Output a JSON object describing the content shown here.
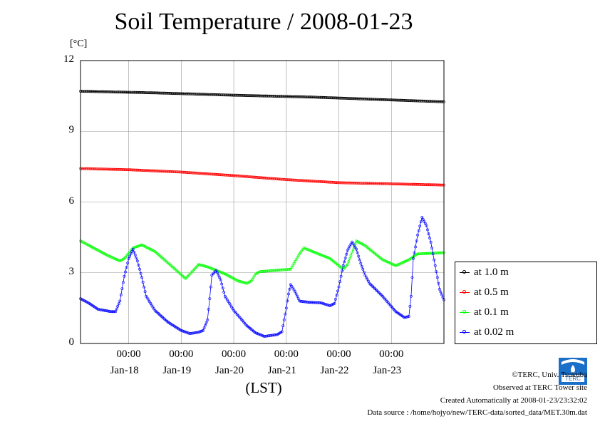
{
  "chart_data": {
    "type": "line",
    "title": "Soil Temperature / 2008-01-23",
    "ylabel": "[°C]",
    "xlabel": "(LST)",
    "ylim": [
      0,
      12
    ],
    "yticks": [
      "0",
      "3",
      "6",
      "9",
      "12"
    ],
    "xlim_days": [
      "2008-01-17 02:00",
      "2008-01-23 24:00"
    ],
    "xticks": [
      {
        "time": "00:00",
        "date": "Jan-18",
        "at": "2008-01-18 00:00"
      },
      {
        "time": "00:00",
        "date": "Jan-19",
        "at": "2008-01-19 00:00"
      },
      {
        "time": "00:00",
        "date": "Jan-20",
        "at": "2008-01-20 00:00"
      },
      {
        "time": "00:00",
        "date": "Jan-21",
        "at": "2008-01-21 00:00"
      },
      {
        "time": "00:00",
        "date": "Jan-22",
        "at": "2008-01-22 00:00"
      },
      {
        "time": "00:00",
        "date": "Jan-23",
        "at": "2008-01-23 00:00"
      }
    ],
    "grid": true,
    "legend_position": "right",
    "series": [
      {
        "name": "at 1.0 m",
        "color": "#000000",
        "points": [
          [
            "2008-01-17 02:00",
            10.7
          ],
          [
            "2008-01-18 12:00",
            10.63
          ],
          [
            "2008-01-20 00:00",
            10.53
          ],
          [
            "2008-01-21 12:00",
            10.45
          ],
          [
            "2008-01-23 00:00",
            10.33
          ],
          [
            "2008-01-23 24:00",
            10.25
          ]
        ]
      },
      {
        "name": "at 0.5 m",
        "color": "#ff0000",
        "points": [
          [
            "2008-01-17 02:00",
            7.42
          ],
          [
            "2008-01-18 00:00",
            7.37
          ],
          [
            "2008-01-19 00:00",
            7.27
          ],
          [
            "2008-01-20 00:00",
            7.12
          ],
          [
            "2008-01-21 00:00",
            6.95
          ],
          [
            "2008-01-22 00:00",
            6.82
          ],
          [
            "2008-01-23 00:00",
            6.77
          ],
          [
            "2008-01-23 24:00",
            6.72
          ]
        ]
      },
      {
        "name": "at 0.1 m",
        "color": "#00ff00",
        "points": [
          [
            "2008-01-17 02:00",
            4.35
          ],
          [
            "2008-01-17 14:00",
            3.75
          ],
          [
            "2008-01-17 20:00",
            3.5
          ],
          [
            "2008-01-17 22:00",
            3.6
          ],
          [
            "2008-01-18 02:00",
            4.05
          ],
          [
            "2008-01-18 06:00",
            4.18
          ],
          [
            "2008-01-18 12:00",
            3.9
          ],
          [
            "2008-01-18 20:00",
            3.25
          ],
          [
            "2008-01-19 02:00",
            2.75
          ],
          [
            "2008-01-19 06:00",
            3.15
          ],
          [
            "2008-01-19 08:00",
            3.35
          ],
          [
            "2008-01-19 12:00",
            3.25
          ],
          [
            "2008-01-19 20:00",
            2.95
          ],
          [
            "2008-01-20 02:00",
            2.65
          ],
          [
            "2008-01-20 06:00",
            2.55
          ],
          [
            "2008-01-20 08:00",
            2.65
          ],
          [
            "2008-01-20 10:00",
            2.95
          ],
          [
            "2008-01-20 12:00",
            3.05
          ],
          [
            "2008-01-21 02:00",
            3.15
          ],
          [
            "2008-01-21 06:00",
            3.8
          ],
          [
            "2008-01-21 08:00",
            4.05
          ],
          [
            "2008-01-21 12:00",
            3.9
          ],
          [
            "2008-01-21 20:00",
            3.6
          ],
          [
            "2008-01-22 02:00",
            3.15
          ],
          [
            "2008-01-22 04:00",
            3.35
          ],
          [
            "2008-01-22 08:00",
            4.35
          ],
          [
            "2008-01-22 12:00",
            4.15
          ],
          [
            "2008-01-22 20:00",
            3.55
          ],
          [
            "2008-01-23 02:00",
            3.3
          ],
          [
            "2008-01-23 08:00",
            3.55
          ],
          [
            "2008-01-23 12:00",
            3.8
          ],
          [
            "2008-01-23 24:00",
            3.85
          ]
        ]
      },
      {
        "name": "at 0.02 m",
        "color": "#0000ff",
        "points": [
          [
            "2008-01-17 02:00",
            1.9
          ],
          [
            "2008-01-17 06:00",
            1.7
          ],
          [
            "2008-01-17 10:00",
            1.45
          ],
          [
            "2008-01-17 16:00",
            1.35
          ],
          [
            "2008-01-17 18:00",
            1.35
          ],
          [
            "2008-01-17 20:00",
            1.8
          ],
          [
            "2008-01-17 22:00",
            2.85
          ],
          [
            "2008-01-18 00:00",
            3.6
          ],
          [
            "2008-01-18 02:00",
            4.0
          ],
          [
            "2008-01-18 04:00",
            3.5
          ],
          [
            "2008-01-18 06:00",
            2.8
          ],
          [
            "2008-01-18 08:00",
            2.0
          ],
          [
            "2008-01-18 12:00",
            1.4
          ],
          [
            "2008-01-18 18:00",
            0.9
          ],
          [
            "2008-01-19 00:00",
            0.55
          ],
          [
            "2008-01-19 04:00",
            0.42
          ],
          [
            "2008-01-19 08:00",
            0.48
          ],
          [
            "2008-01-19 10:00",
            0.55
          ],
          [
            "2008-01-19 12:00",
            1.0
          ],
          [
            "2008-01-19 13:00",
            1.9
          ],
          [
            "2008-01-19 14:00",
            2.9
          ],
          [
            "2008-01-19 16:00",
            3.1
          ],
          [
            "2008-01-19 18:00",
            2.7
          ],
          [
            "2008-01-19 20:00",
            2.0
          ],
          [
            "2008-01-20 00:00",
            1.4
          ],
          [
            "2008-01-20 06:00",
            0.75
          ],
          [
            "2008-01-20 10:00",
            0.45
          ],
          [
            "2008-01-20 14:00",
            0.3
          ],
          [
            "2008-01-20 20:00",
            0.38
          ],
          [
            "2008-01-20 22:00",
            0.5
          ],
          [
            "2008-01-21 00:00",
            1.5
          ],
          [
            "2008-01-21 01:00",
            2.1
          ],
          [
            "2008-01-21 02:00",
            2.5
          ],
          [
            "2008-01-21 04:00",
            2.2
          ],
          [
            "2008-01-21 06:00",
            1.8
          ],
          [
            "2008-01-21 10:00",
            1.75
          ],
          [
            "2008-01-21 16:00",
            1.72
          ],
          [
            "2008-01-21 20:00",
            1.6
          ],
          [
            "2008-01-21 22:00",
            1.7
          ],
          [
            "2008-01-22 00:00",
            2.4
          ],
          [
            "2008-01-22 02:00",
            3.3
          ],
          [
            "2008-01-22 04:00",
            3.95
          ],
          [
            "2008-01-22 06:00",
            4.3
          ],
          [
            "2008-01-22 08:00",
            4.0
          ],
          [
            "2008-01-22 10:00",
            3.4
          ],
          [
            "2008-01-22 12:00",
            2.9
          ],
          [
            "2008-01-22 14:00",
            2.55
          ],
          [
            "2008-01-22 20:00",
            2.0
          ],
          [
            "2008-01-23 02:00",
            1.35
          ],
          [
            "2008-01-23 06:00",
            1.1
          ],
          [
            "2008-01-23 08:00",
            1.15
          ],
          [
            "2008-01-23 09:00",
            2.0
          ],
          [
            "2008-01-23 10:00",
            3.6
          ],
          [
            "2008-01-23 12:00",
            4.6
          ],
          [
            "2008-01-23 14:00",
            5.35
          ],
          [
            "2008-01-23 16:00",
            5.0
          ],
          [
            "2008-01-23 18:00",
            4.3
          ],
          [
            "2008-01-23 20:00",
            3.3
          ],
          [
            "2008-01-23 22:00",
            2.3
          ],
          [
            "2008-01-23 24:00",
            1.85
          ]
        ]
      }
    ]
  },
  "credits": {
    "line1": "©TERC, Univ. Tsukuba",
    "line2": "Observed at TERC Tower site",
    "line3": "Created Automatically at 2008-01-23/23:32:02",
    "line4": "Data source : /home/hojyo/new/TERC-data/sorted_data/MET.30m.dat"
  },
  "logo": {
    "text": "TERC"
  }
}
